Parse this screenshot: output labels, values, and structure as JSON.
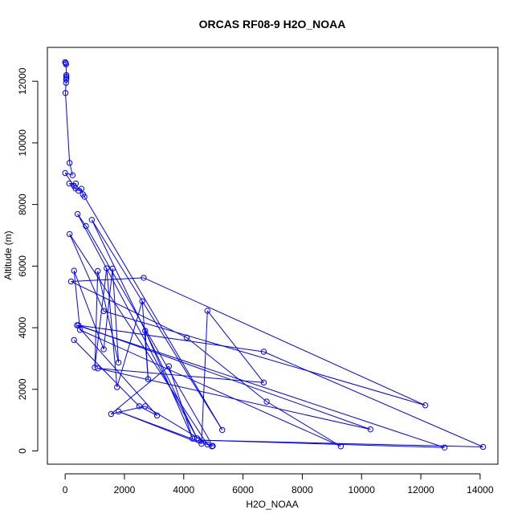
{
  "chart_data": {
    "type": "line",
    "title": "ORCAS RF08-9 H2O_NOAA",
    "xlabel": "H2O_NOAA",
    "ylabel": "Altitude (m)",
    "xlim": [
      -600,
      14600
    ],
    "ylim": [
      -430,
      13100
    ],
    "xticks": [
      0,
      2000,
      4000,
      6000,
      8000,
      10000,
      12000,
      14000
    ],
    "yticks": [
      0,
      2000,
      4000,
      6000,
      8000,
      10000,
      12000
    ],
    "grid": false,
    "legend": "none",
    "color": "#0000ff",
    "series": [
      {
        "points": [
          [
            0,
            12620
          ],
          [
            20,
            12590
          ],
          [
            30,
            12550
          ],
          [
            40,
            12200
          ],
          [
            40,
            12150
          ],
          [
            40,
            12100
          ],
          [
            35,
            12050
          ],
          [
            30,
            11950
          ],
          [
            10,
            11620
          ],
          [
            150,
            9350
          ],
          [
            250,
            8950
          ],
          [
            0,
            9020
          ],
          [
            300,
            8600
          ],
          [
            360,
            8680
          ],
          [
            140,
            8680
          ],
          [
            350,
            8520
          ],
          [
            450,
            8450
          ],
          [
            550,
            8510
          ],
          [
            600,
            8330
          ],
          [
            650,
            8250
          ],
          [
            5300,
            680
          ],
          [
            900,
            7500
          ],
          [
            4450,
            410
          ],
          [
            420,
            7690
          ],
          [
            700,
            7300
          ],
          [
            4980,
            160
          ],
          [
            4800,
            210
          ],
          [
            150,
            7040
          ],
          [
            1300,
            4540
          ],
          [
            12150,
            1480
          ],
          [
            2650,
            5620
          ],
          [
            200,
            5500
          ],
          [
            4100,
            3680
          ],
          [
            6800,
            1600
          ],
          [
            9300,
            150
          ],
          [
            500,
            3930
          ],
          [
            300,
            5850
          ],
          [
            1300,
            3300
          ],
          [
            1600,
            5920
          ],
          [
            1800,
            2870
          ],
          [
            1100,
            5840
          ],
          [
            1000,
            2710
          ],
          [
            1400,
            5930
          ],
          [
            1750,
            2070
          ],
          [
            2600,
            4860
          ],
          [
            2800,
            2330
          ],
          [
            2700,
            3900
          ],
          [
            4300,
            400
          ],
          [
            3500,
            2750
          ],
          [
            1550,
            1200
          ],
          [
            2700,
            1450
          ],
          [
            4950,
            150
          ],
          [
            1800,
            1280
          ],
          [
            4600,
            230
          ],
          [
            4800,
            4550
          ],
          [
            6700,
            2220
          ],
          [
            1100,
            2680
          ],
          [
            10300,
            700
          ],
          [
            450,
            4080
          ],
          [
            6700,
            3220
          ],
          [
            14100,
            130
          ],
          [
            4500,
            350
          ],
          [
            12800,
            110
          ],
          [
            400,
            4080
          ],
          [
            3100,
            1150
          ],
          [
            2500,
            1450
          ],
          [
            300,
            3600
          ]
        ]
      }
    ]
  }
}
